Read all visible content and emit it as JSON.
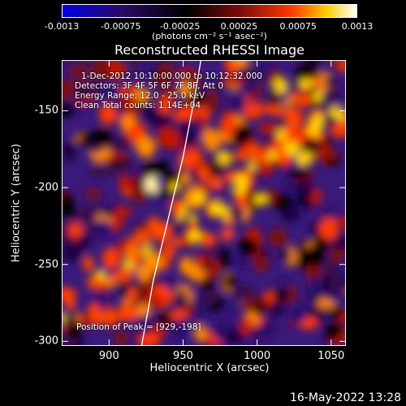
{
  "colorbar": {
    "ticks": [
      "-0.0013",
      "-0.00075",
      "-0.00025",
      "0.00025",
      "0.00075",
      "0.0013"
    ],
    "unit_label": "(photons cm⁻² s⁻¹ asec⁻²)",
    "colors": [
      "#0000e0",
      "#2a0a6a",
      "#000000",
      "#7a0a0a",
      "#ff3a00",
      "#ffd000",
      "#ffffff"
    ]
  },
  "annotations": {
    "time": "1-Dec-2012 10:10:00.000 to 10:12:32.000",
    "detectors": "Detectors: 3F 4F 5F 6F 7F 8F, Att 0",
    "energy": "Energy Range: 12.0 - 25.0 keV",
    "clean": "Clean     Total counts: 1.14E+04",
    "peak": "Position of Peak = [929,-198]"
  },
  "footer": {
    "timestamp": "16-May-2022 13:28"
  },
  "chart_data": {
    "type": "heatmap",
    "title": "Reconstructed RHESSI Image",
    "xlabel": "Heliocentric X (arcsec)",
    "ylabel": "Heliocentric Y (arcsec)",
    "xlim": [
      868,
      1060
    ],
    "ylim": [
      -303,
      -117
    ],
    "xticks": [
      900,
      950,
      1000,
      1050
    ],
    "yticks": [
      -150,
      -200,
      -250,
      -300
    ],
    "colorbar_range": [
      -0.0013,
      0.0013
    ],
    "limb_curve": [
      [
        922,
        -303
      ],
      [
        930,
        -260
      ],
      [
        940,
        -220
      ],
      [
        950,
        -180
      ],
      [
        958,
        -140
      ],
      [
        962,
        -117
      ]
    ],
    "peak": [
      929,
      -198
    ]
  }
}
